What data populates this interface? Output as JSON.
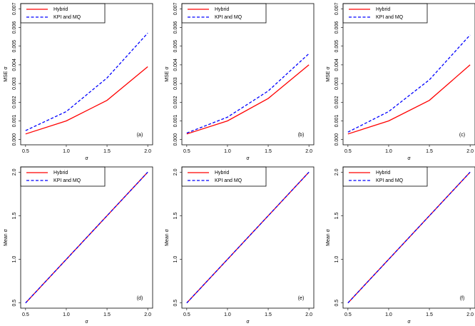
{
  "chart_data": [
    {
      "type": "line",
      "x_label": "σ",
      "y_label": "MSE σ",
      "annotation": "(a)",
      "legend": "top-left",
      "x": [
        0.5,
        1,
        1.5,
        2
      ],
      "xlim": [
        0.44,
        2.06
      ],
      "xticks": [
        0.5,
        {
          "value": 1,
          "label": "1.0"
        },
        1.5,
        {
          "value": 2,
          "label": "2.0"
        }
      ],
      "ylim": [
        -0.00028,
        0.00728
      ],
      "yticks": [
        {
          "value": 0,
          "label": "0.000"
        },
        0.001,
        0.002,
        0.003,
        0.004,
        0.005,
        0.006,
        0.007
      ],
      "series": [
        {
          "name": "Hybrid",
          "color": "#ff0000",
          "dashed": false,
          "values": [
            0.0003,
            0.001,
            0.0021,
            0.0039
          ]
        },
        {
          "name": "KPI and MQ",
          "color": "#0000ff",
          "dashed": true,
          "values": [
            0.00048,
            0.0015,
            0.0033,
            0.0057
          ]
        }
      ]
    },
    {
      "type": "line",
      "x_label": "σ",
      "y_label": "MSE σ",
      "annotation": "(b)",
      "legend": "top-left",
      "x": [
        0.5,
        1,
        1.5,
        2
      ],
      "xlim": [
        0.44,
        2.06
      ],
      "xticks": [
        0.5,
        {
          "value": 1,
          "label": "1.0"
        },
        1.5,
        {
          "value": 2,
          "label": "2.0"
        }
      ],
      "ylim": [
        -0.00028,
        0.00728
      ],
      "yticks": [
        {
          "value": 0,
          "label": "0.000"
        },
        0.001,
        0.002,
        0.003,
        0.004,
        0.005,
        0.006,
        0.007
      ],
      "series": [
        {
          "name": "Hybrid",
          "color": "#ff0000",
          "dashed": false,
          "values": [
            0.0003,
            0.001,
            0.0022,
            0.004
          ]
        },
        {
          "name": "KPI and MQ",
          "color": "#0000ff",
          "dashed": true,
          "values": [
            0.00035,
            0.0012,
            0.0026,
            0.0046
          ]
        }
      ]
    },
    {
      "type": "line",
      "x_label": "σ",
      "y_label": "MSE σ",
      "annotation": "(c)",
      "legend": "top-left",
      "x": [
        0.5,
        1,
        1.5,
        2
      ],
      "xlim": [
        0.44,
        2.06
      ],
      "xticks": [
        0.5,
        {
          "value": 1,
          "label": "1.0"
        },
        1.5,
        {
          "value": 2,
          "label": "2.0"
        }
      ],
      "ylim": [
        -0.00028,
        0.00728
      ],
      "yticks": [
        {
          "value": 0,
          "label": "0.000"
        },
        0.001,
        0.002,
        0.003,
        0.004,
        0.005,
        0.006,
        0.007
      ],
      "series": [
        {
          "name": "Hybrid",
          "color": "#ff0000",
          "dashed": false,
          "values": [
            0.0003,
            0.001,
            0.0021,
            0.004
          ]
        },
        {
          "name": "KPI and MQ",
          "color": "#0000ff",
          "dashed": true,
          "values": [
            0.0004,
            0.0015,
            0.0032,
            0.0056
          ]
        }
      ]
    },
    {
      "type": "line",
      "x_label": "σ",
      "y_label": "Mean σ",
      "annotation": "(d)",
      "legend": "top-left",
      "x": [
        0.5,
        1,
        1.5,
        2
      ],
      "xlim": [
        0.44,
        2.06
      ],
      "xticks": [
        0.5,
        {
          "value": 1,
          "label": "1.0"
        },
        1.5,
        {
          "value": 2,
          "label": "2.0"
        }
      ],
      "ylim": [
        0.44,
        2.06
      ],
      "yticks": [
        0.5,
        {
          "value": 1,
          "label": "1.0"
        },
        1.5,
        {
          "value": 2,
          "label": "2.0"
        }
      ],
      "series": [
        {
          "name": "Hybrid",
          "color": "#ff0000",
          "dashed": false,
          "values": [
            0.5,
            1,
            1.5,
            2
          ]
        },
        {
          "name": "KPI and MQ",
          "color": "#0000ff",
          "dashed": true,
          "values": [
            0.5,
            1,
            1.5,
            2
          ]
        }
      ]
    },
    {
      "type": "line",
      "x_label": "σ",
      "y_label": "Mean σ",
      "annotation": "(e)",
      "legend": "top-left",
      "x": [
        0.5,
        1,
        1.5,
        2
      ],
      "xlim": [
        0.44,
        2.06
      ],
      "xticks": [
        0.5,
        {
          "value": 1,
          "label": "1.0"
        },
        1.5,
        {
          "value": 2,
          "label": "2.0"
        }
      ],
      "ylim": [
        0.44,
        2.06
      ],
      "yticks": [
        0.5,
        {
          "value": 1,
          "label": "1.0"
        },
        1.5,
        {
          "value": 2,
          "label": "2.0"
        }
      ],
      "series": [
        {
          "name": "Hybrid",
          "color": "#ff0000",
          "dashed": false,
          "values": [
            0.5,
            1,
            1.5,
            2
          ]
        },
        {
          "name": "KPI and MQ",
          "color": "#0000ff",
          "dashed": true,
          "values": [
            0.5,
            1,
            1.5,
            2
          ]
        }
      ]
    },
    {
      "type": "line",
      "x_label": "σ",
      "y_label": "Mean σ",
      "annotation": "(f)",
      "legend": "top-left",
      "x": [
        0.5,
        1,
        1.5,
        2
      ],
      "xlim": [
        0.44,
        2.06
      ],
      "xticks": [
        0.5,
        {
          "value": 1,
          "label": "1.0"
        },
        1.5,
        {
          "value": 2,
          "label": "2.0"
        }
      ],
      "ylim": [
        0.44,
        2.06
      ],
      "yticks": [
        0.5,
        {
          "value": 1,
          "label": "1.0"
        },
        1.5,
        {
          "value": 2,
          "label": "2.0"
        }
      ],
      "series": [
        {
          "name": "Hybrid",
          "color": "#ff0000",
          "dashed": false,
          "values": [
            0.5,
            1,
            1.5,
            2
          ]
        },
        {
          "name": "KPI and MQ",
          "color": "#0000ff",
          "dashed": true,
          "values": [
            0.5,
            1,
            1.5,
            2
          ]
        }
      ]
    }
  ]
}
